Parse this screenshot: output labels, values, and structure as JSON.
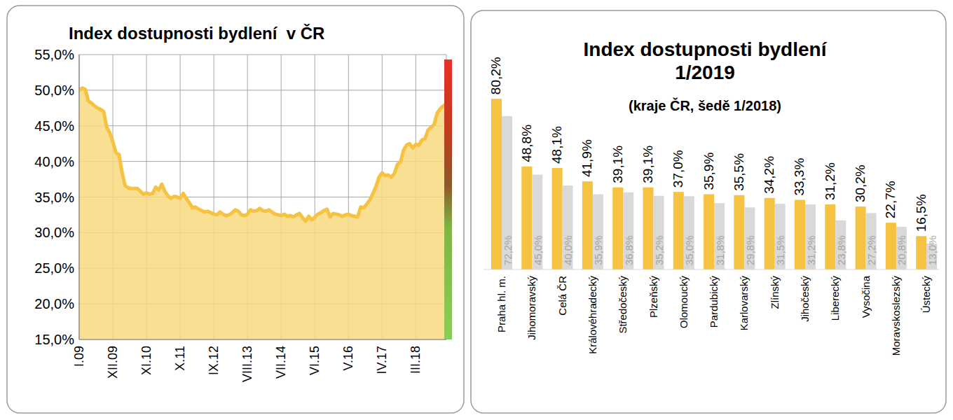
{
  "chart_data": [
    {
      "type": "area",
      "title": "Index dostupnosti bydlení  v ČR",
      "categories": [
        "I.09",
        null,
        null,
        null,
        null,
        null,
        null,
        null,
        null,
        null,
        null,
        "XII.09",
        null,
        null,
        null,
        null,
        null,
        null,
        null,
        null,
        null,
        null,
        "XI.10",
        null,
        null,
        null,
        null,
        null,
        null,
        null,
        null,
        null,
        null,
        "X.11",
        null,
        null,
        null,
        null,
        null,
        null,
        null,
        null,
        null,
        null,
        "IX.12",
        null,
        null,
        null,
        null,
        null,
        null,
        null,
        null,
        null,
        null,
        "VIII.13",
        null,
        null,
        null,
        null,
        null,
        null,
        null,
        null,
        null,
        null,
        "VII.14",
        null,
        null,
        null,
        null,
        null,
        null,
        null,
        null,
        null,
        null,
        "VI.15",
        null,
        null,
        null,
        null,
        null,
        null,
        null,
        null,
        null,
        null,
        "V.16",
        null,
        null,
        null,
        null,
        null,
        null,
        null,
        null,
        null,
        null,
        "IV.17",
        null,
        null,
        null,
        null,
        null,
        null,
        null,
        null,
        null,
        null,
        "III.18",
        null,
        null,
        null,
        null,
        null,
        null,
        null,
        null,
        null,
        null
      ],
      "values": [
        50.0,
        50.3,
        50.1,
        48.5,
        48.2,
        47.8,
        47.5,
        47.3,
        47.0,
        44.8,
        44.0,
        42.8,
        41.2,
        41.0,
        38.5,
        36.6,
        36.3,
        36.2,
        36.2,
        36.2,
        35.8,
        35.4,
        35.6,
        35.4,
        35.5,
        36.4,
        36.0,
        36.8,
        35.8,
        35.2,
        34.8,
        35.1,
        35.0,
        34.8,
        35.5,
        34.8,
        34.2,
        33.5,
        33.6,
        33.3,
        33.1,
        32.9,
        33.0,
        32.8,
        32.6,
        32.5,
        32.9,
        32.6,
        32.4,
        32.5,
        32.8,
        33.2,
        33.0,
        32.5,
        32.4,
        32.6,
        33.2,
        33.0,
        33.1,
        33.4,
        33.1,
        33.0,
        33.2,
        32.9,
        32.6,
        32.5,
        32.4,
        32.6,
        32.3,
        32.4,
        32.2,
        32.5,
        32.7,
        32.1,
        31.6,
        32.3,
        31.8,
        32.2,
        32.6,
        32.8,
        33.1,
        33.3,
        32.2,
        32.7,
        32.6,
        32.5,
        32.3,
        32.5,
        32.6,
        32.4,
        32.3,
        32.2,
        33.6,
        33.5,
        34.0,
        34.6,
        35.5,
        36.5,
        37.8,
        38.4,
        38.0,
        38.1,
        37.8,
        38.3,
        39.6,
        39.9,
        41.6,
        42.3,
        42.5,
        41.9,
        42.4,
        42.3,
        43.0,
        43.2,
        44.4,
        44.8,
        45.2,
        46.8,
        47.4,
        47.8,
        48.1
      ],
      "color": "#f5c242",
      "ylim": [
        15,
        55
      ],
      "yticks": [
        {
          "value": 15,
          "label": "15,0%"
        },
        {
          "value": 20,
          "label": "20,0%"
        },
        {
          "value": 25,
          "label": "25,0%"
        },
        {
          "value": 30,
          "label": "30,0%"
        },
        {
          "value": 35,
          "label": "35,0%"
        },
        {
          "value": 40,
          "label": "40,0%"
        },
        {
          "value": 45,
          "label": "45,0%"
        },
        {
          "value": 50,
          "label": "50,0%"
        },
        {
          "value": 55,
          "label": "55,0%"
        }
      ],
      "grid": true
    },
    {
      "type": "bar",
      "title": "Index dostupnosti bydlení\n1/2019",
      "subtitle": "(kraje ČR, šedě 1/2018)",
      "categories": [
        "Praha hl. m.",
        "Jihomoravský",
        "Celá ČR",
        "Královéhradecký",
        "Středočeský",
        "Plzeňský",
        "Olomoucký",
        "Pardubický",
        "Karlovarský",
        "Zlínský",
        "Jihočeský",
        "Liberecký",
        "Vysočina",
        "Moravskoslezský",
        "Ústecký"
      ],
      "series": [
        {
          "name": "1/2019",
          "color": "#f5c242",
          "values": [
            80.2,
            48.8,
            48.1,
            41.9,
            39.1,
            39.1,
            37.0,
            35.9,
            35.5,
            34.2,
            33.3,
            31.2,
            30.2,
            22.7,
            16.5
          ],
          "value_labels": [
            "80,2%",
            "48,8%",
            "48,1%",
            "41,9%",
            "39,1%",
            "39,1%",
            "37,0%",
            "35,9%",
            "35,5%",
            "34,2%",
            "33,3%",
            "31,2%",
            "30,2%",
            "22,7%",
            "16,5%"
          ]
        },
        {
          "name": "1/2018",
          "color": "#d9d9d9",
          "values": [
            72.2,
            45.0,
            40.0,
            35.9,
            36.8,
            35.2,
            35.0,
            31.8,
            29.8,
            31.5,
            31.2,
            23.8,
            27.2,
            20.8,
            13.0
          ],
          "value_labels": [
            "72,2%",
            "45,0%",
            "40,0%",
            "35,9%",
            "36,8%",
            "35,2%",
            "35,0%",
            "31,8%",
            "29,8%",
            "31,5%",
            "31,2%",
            "23,8%",
            "27,2%",
            "20,8%",
            "13,0%"
          ]
        }
      ],
      "ylim": [
        1,
        90
      ],
      "data_labels": true,
      "tick_labels": "x",
      "grid": false
    }
  ]
}
